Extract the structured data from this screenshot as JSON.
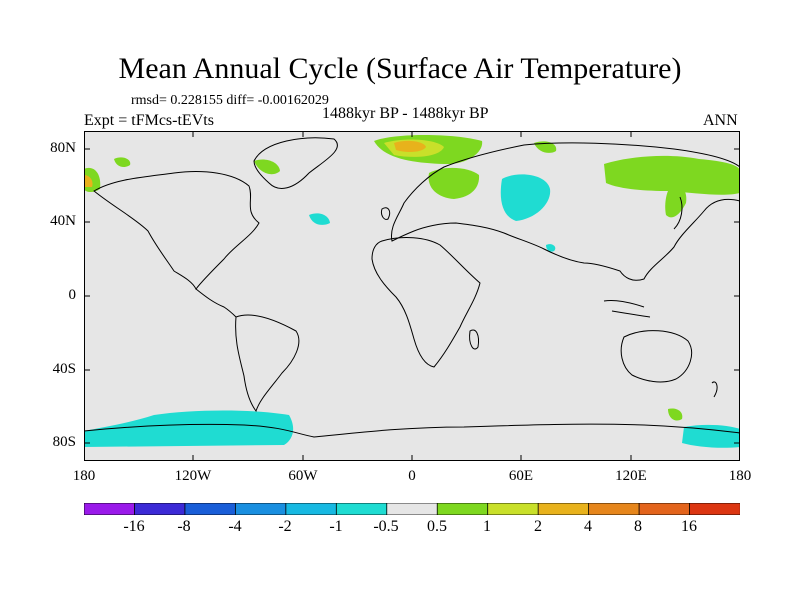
{
  "title": "Mean Annual Cycle (Surface Air Temperature)",
  "stats": "rmsd= 0.228155 diff= -0.00162029",
  "period": "1488kyr BP - 1488kyr BP",
  "experiment": "Expt = tFMcs-tEVts",
  "season": "ANN",
  "y_ticks": [
    "80N",
    "40N",
    "0",
    "40S",
    "80S"
  ],
  "x_ticks": [
    "180",
    "120W",
    "60W",
    "0",
    "60E",
    "120E",
    "180"
  ],
  "colorbar": {
    "labels": [
      "-16",
      "-8",
      "-4",
      "-2",
      "-1",
      "-0.5",
      "0.5",
      "1",
      "2",
      "4",
      "8",
      "16"
    ],
    "colors": [
      "#9a1aea",
      "#3c2ad6",
      "#1a5ed8",
      "#1a8fe0",
      "#17b9e2",
      "#1fdcd2",
      "#e6e6e6",
      "#7ed820",
      "#c9e02a",
      "#e8b21c",
      "#e6861c",
      "#e3641c",
      "#dc3612"
    ]
  }
}
